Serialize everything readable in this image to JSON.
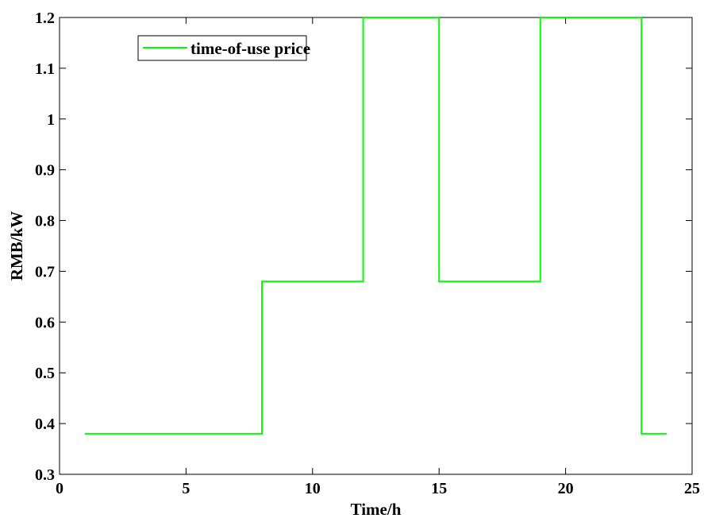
{
  "chart_data": {
    "type": "line",
    "step": true,
    "xlabel": "Time/h",
    "ylabel": "RMB/kW",
    "xlim": [
      0,
      25
    ],
    "ylim": [
      0.3,
      1.2
    ],
    "xticks": [
      0,
      5,
      10,
      15,
      20,
      25
    ],
    "yticks": [
      0.3,
      0.4,
      0.5,
      0.6,
      0.7,
      0.8,
      0.9,
      1,
      1.1,
      1.2
    ],
    "xtick_labels": [
      "0",
      "5",
      "10",
      "15",
      "20",
      "25"
    ],
    "ytick_labels": [
      "0.3",
      "0.4",
      "0.5",
      "0.6",
      "0.7",
      "0.8",
      "0.9",
      "1",
      "1.1",
      "1.2"
    ],
    "grid": false,
    "legend_position": "top-left",
    "series": [
      {
        "name": "time-of-use price",
        "color": "#00ff00",
        "x": [
          1,
          8,
          8,
          12,
          12,
          15,
          15,
          19,
          19,
          23,
          23,
          24
        ],
        "y": [
          0.38,
          0.38,
          0.68,
          0.68,
          1.2,
          1.2,
          0.68,
          0.68,
          1.2,
          1.2,
          0.38,
          0.38
        ]
      }
    ]
  }
}
